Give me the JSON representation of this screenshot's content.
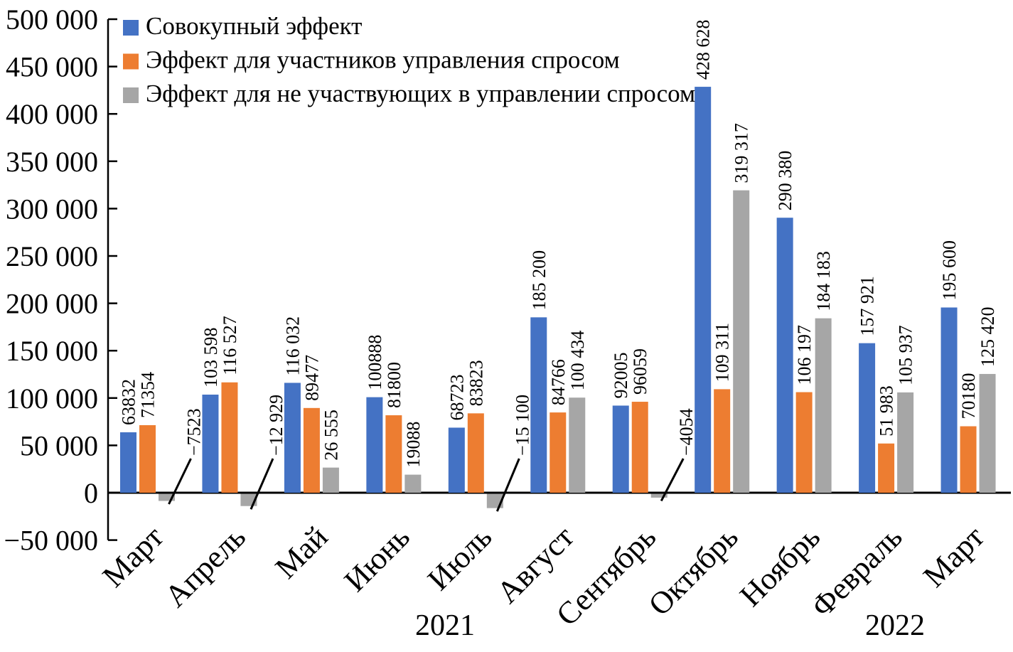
{
  "page": {
    "background": "#ffffff"
  },
  "chart_data": {
    "type": "bar",
    "title": "",
    "grid": false,
    "legend_position": "top-left",
    "legend": [
      {
        "label": "Совокупный эффект",
        "color": "#4472c4"
      },
      {
        "label": "Эффект для участников управления спросом",
        "color": "#ed7d31"
      },
      {
        "label": "Эффект для не участвующих в управлении спросом",
        "color": "#a6a6a6"
      }
    ],
    "categories": [
      "Март",
      "Апрель",
      "Май",
      "Июнь",
      "Июль",
      "Август",
      "Сентябрь",
      "Октябрь",
      "Ноябрь",
      "Февраль",
      "Март"
    ],
    "year_labels": [
      {
        "text": "2021"
      },
      {
        "text": "2022"
      }
    ],
    "y_axis": {
      "min": -50000,
      "max": 500000,
      "step": 50000,
      "tick_labels": [
        "500 000",
        "450 000",
        "400 000",
        "350 000",
        "300 000",
        "250 000",
        "200 000",
        "150 000",
        "100 000",
        "50 000",
        "0",
        "−50 000"
      ]
    },
    "series": [
      {
        "name": "Совокупный эффект",
        "color": "#4472c4",
        "values": [
          63832,
          103598,
          116032,
          100888,
          68723,
          185200,
          92005,
          428628,
          290380,
          157921,
          195600
        ],
        "labels": [
          "63832",
          "103 598",
          "116 032",
          "100888",
          "68723",
          "185 200",
          "92005",
          "428 628",
          "290 380",
          "157 921",
          "195 600"
        ]
      },
      {
        "name": "Эффект для участников управления спросом",
        "color": "#ed7d31",
        "values": [
          71354,
          116527,
          89477,
          81800,
          83823,
          84766,
          96059,
          109311,
          106197,
          51983,
          70180
        ],
        "labels": [
          "71354",
          "116 527",
          "89477",
          "81800",
          "83823",
          "84766",
          "96059",
          "109 311",
          "106 197",
          "51 983",
          "70180"
        ]
      },
      {
        "name": "Эффект для не участвующих в управлении спросом",
        "color": "#a6a6a6",
        "values": [
          -7523,
          -12929,
          26555,
          19088,
          -15100,
          100434,
          -4054,
          319317,
          184183,
          105937,
          125420
        ],
        "labels": [
          "−7523",
          "−12 929",
          "26 555",
          "19088",
          "−15 100",
          "100 434",
          "−4054",
          "319 317",
          "184 183",
          "105 937",
          "125 420"
        ]
      }
    ]
  }
}
